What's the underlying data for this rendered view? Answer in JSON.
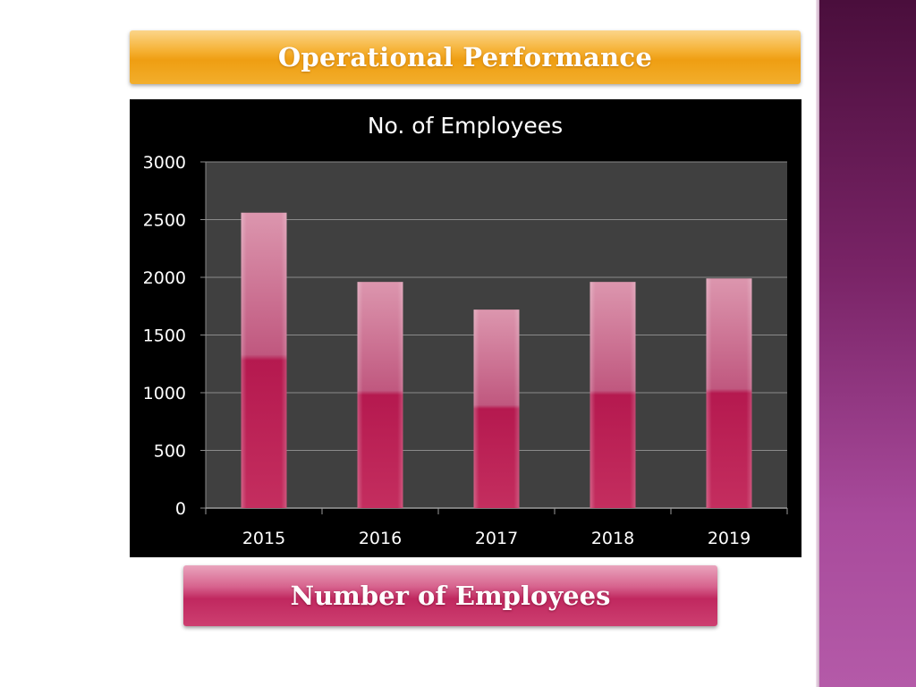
{
  "header": {
    "title": "Operational Performance"
  },
  "footer": {
    "label": "Number of Employees"
  },
  "colors": {
    "bar_top": "#d98aa6",
    "bar_bottom": "#b8174d",
    "plot_bg": "#404040",
    "panel_bg": "#000000",
    "accent_orange": "#f4a623",
    "accent_magenta": "#c2185b"
  },
  "chart_data": {
    "type": "bar",
    "title": "No. of Employees",
    "xlabel": "",
    "ylabel": "",
    "categories": [
      "2015",
      "2016",
      "2017",
      "2018",
      "2019"
    ],
    "values": [
      2560,
      1960,
      1720,
      1960,
      1990
    ],
    "ylim": [
      0,
      3000
    ],
    "yticks": [
      "0",
      "500",
      "1000",
      "1500",
      "2000",
      "2500",
      "3000"
    ],
    "grid": true,
    "legend": "none"
  }
}
